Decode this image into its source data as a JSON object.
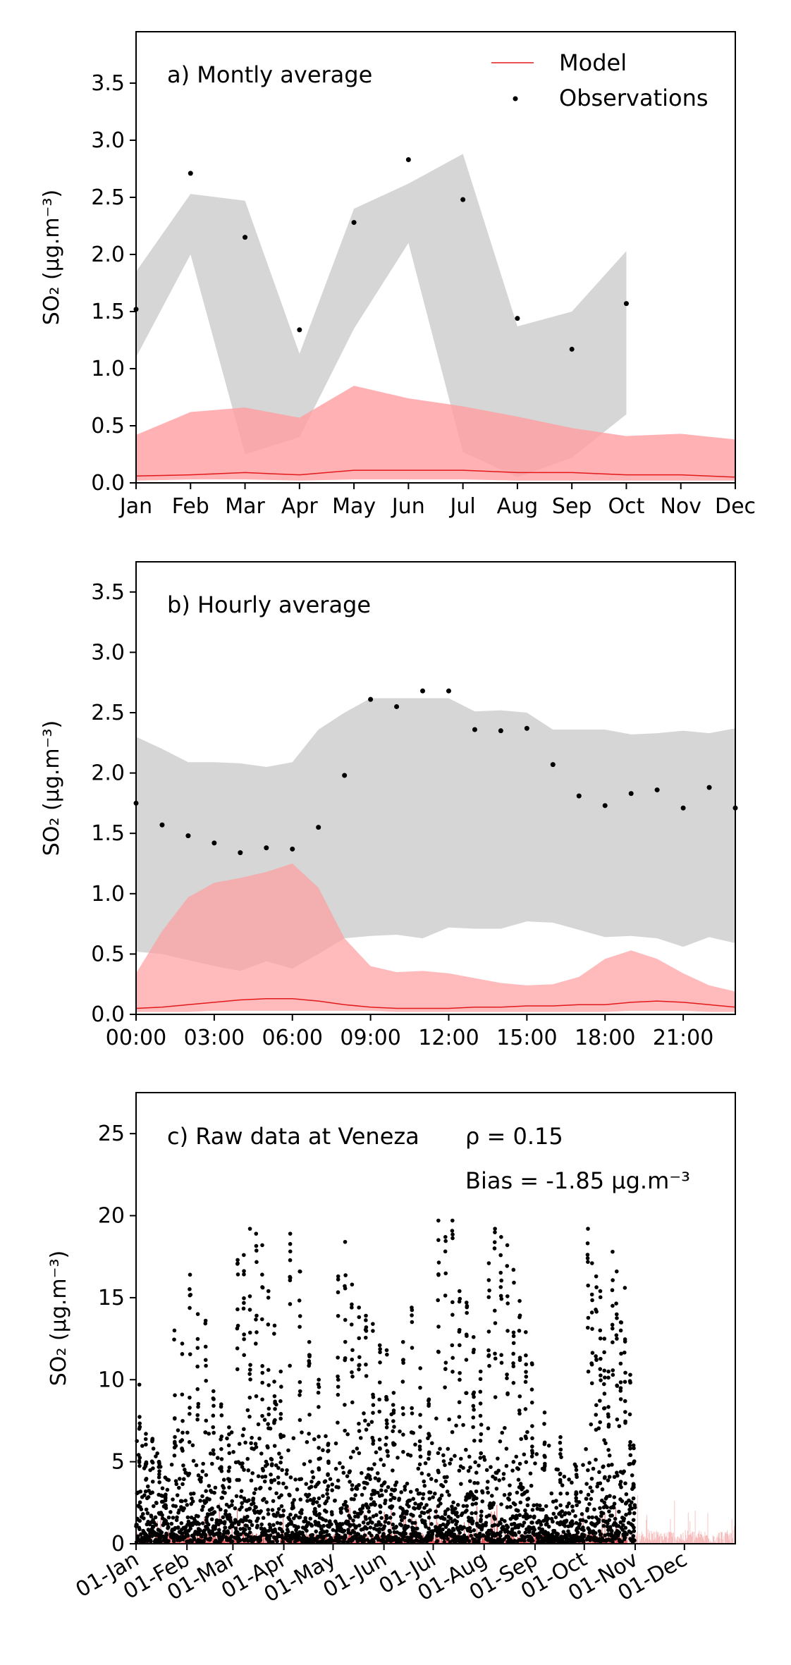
{
  "figure": {
    "colors": {
      "model_line": "#e31a1c",
      "model_band": "#ff9da0",
      "obs_band": "#c8c8c8",
      "obs_point": "#000000"
    },
    "legend": {
      "model_label": "Model",
      "obs_label": "Observations"
    }
  },
  "chart_data": [
    {
      "id": "monthly",
      "type": "line",
      "title": "a) Montly average",
      "ylabel": "SO₂ (μg.m⁻³)",
      "ylim": [
        0,
        3.95
      ],
      "yticks": [
        0.0,
        0.5,
        1.0,
        1.5,
        2.0,
        2.5,
        3.0,
        3.5
      ],
      "categories": [
        "Jan",
        "Feb",
        "Mar",
        "Apr",
        "May",
        "Jun",
        "Jul",
        "Aug",
        "Sep",
        "Oct",
        "Nov",
        "Dec"
      ],
      "x": [
        0,
        1,
        2,
        3,
        4,
        5,
        6,
        7,
        8,
        9,
        10,
        11
      ],
      "xlim": [
        0,
        11
      ],
      "legend_position": "top-right",
      "obs_band": {
        "x": [
          0,
          1,
          2,
          3,
          4,
          5,
          6,
          7,
          8,
          9
        ],
        "upper": [
          1.85,
          2.53,
          2.47,
          1.13,
          2.4,
          2.62,
          2.88,
          1.37,
          1.5,
          2.03
        ],
        "lower": [
          1.1,
          2.0,
          0.25,
          0.4,
          1.35,
          2.1,
          0.27,
          0.05,
          0.22,
          0.6
        ]
      },
      "model_band": {
        "x": [
          0,
          1,
          2,
          3,
          4,
          5,
          6,
          7,
          8,
          9,
          10,
          11
        ],
        "upper": [
          0.42,
          0.62,
          0.66,
          0.57,
          0.85,
          0.74,
          0.67,
          0.58,
          0.48,
          0.41,
          0.43,
          0.38
        ],
        "lower": [
          0.02,
          0.03,
          0.03,
          0.02,
          0.03,
          0.03,
          0.03,
          0.02,
          0.02,
          0.02,
          0.02,
          0.02
        ]
      },
      "model_line": {
        "x": [
          0,
          1,
          2,
          3,
          4,
          5,
          6,
          7,
          8,
          9,
          10,
          11
        ],
        "y": [
          0.06,
          0.07,
          0.09,
          0.07,
          0.11,
          0.11,
          0.11,
          0.09,
          0.09,
          0.07,
          0.07,
          0.05
        ]
      },
      "observations": {
        "x": [
          0,
          1,
          2,
          3,
          4,
          5,
          6,
          7,
          8,
          9
        ],
        "y": [
          1.52,
          2.71,
          2.15,
          1.34,
          2.28,
          2.83,
          2.48,
          1.44,
          1.17,
          1.57
        ]
      }
    },
    {
      "id": "hourly",
      "type": "line",
      "title": "b) Hourly average",
      "ylabel": "SO₂ (μg.m⁻³)",
      "ylim": [
        0,
        3.75
      ],
      "yticks": [
        0.0,
        0.5,
        1.0,
        1.5,
        2.0,
        2.5,
        3.0,
        3.5
      ],
      "xticklabels": [
        "00:00",
        "03:00",
        "06:00",
        "09:00",
        "12:00",
        "15:00",
        "18:00",
        "21:00"
      ],
      "xticks": [
        0,
        3,
        6,
        9,
        12,
        15,
        18,
        21
      ],
      "xlim": [
        0,
        23
      ],
      "obs_band": {
        "x": [
          0,
          1,
          2,
          3,
          4,
          5,
          6,
          7,
          8,
          9,
          10,
          11,
          12,
          13,
          14,
          15,
          16,
          17,
          18,
          19,
          20,
          21,
          22,
          23
        ],
        "upper": [
          2.3,
          2.2,
          2.09,
          2.09,
          2.08,
          2.05,
          2.09,
          2.36,
          2.5,
          2.62,
          2.62,
          2.62,
          2.62,
          2.51,
          2.52,
          2.5,
          2.36,
          2.36,
          2.36,
          2.32,
          2.33,
          2.35,
          2.33,
          2.37
        ],
        "lower": [
          0.52,
          0.5,
          0.45,
          0.4,
          0.36,
          0.44,
          0.38,
          0.5,
          0.63,
          0.65,
          0.66,
          0.63,
          0.72,
          0.71,
          0.71,
          0.77,
          0.76,
          0.7,
          0.64,
          0.65,
          0.63,
          0.56,
          0.64,
          0.59
        ]
      },
      "model_band": {
        "x": [
          0,
          1,
          2,
          3,
          4,
          5,
          6,
          7,
          8,
          9,
          10,
          11,
          12,
          13,
          14,
          15,
          16,
          17,
          18,
          19,
          20,
          21,
          22,
          23
        ],
        "upper": [
          0.34,
          0.69,
          0.97,
          1.09,
          1.13,
          1.18,
          1.25,
          1.05,
          0.63,
          0.4,
          0.35,
          0.36,
          0.34,
          0.3,
          0.26,
          0.24,
          0.25,
          0.31,
          0.46,
          0.53,
          0.46,
          0.34,
          0.24,
          0.19
        ],
        "lower": [
          0.02,
          0.02,
          0.02,
          0.03,
          0.03,
          0.03,
          0.03,
          0.03,
          0.03,
          0.03,
          0.02,
          0.02,
          0.02,
          0.02,
          0.02,
          0.02,
          0.02,
          0.02,
          0.02,
          0.03,
          0.03,
          0.03,
          0.02,
          0.02
        ]
      },
      "model_line": {
        "x": [
          0,
          1,
          2,
          3,
          4,
          5,
          6,
          7,
          8,
          9,
          10,
          11,
          12,
          13,
          14,
          15,
          16,
          17,
          18,
          19,
          20,
          21,
          22,
          23
        ],
        "y": [
          0.05,
          0.06,
          0.08,
          0.1,
          0.12,
          0.13,
          0.13,
          0.11,
          0.08,
          0.06,
          0.05,
          0.05,
          0.05,
          0.06,
          0.06,
          0.07,
          0.07,
          0.08,
          0.08,
          0.1,
          0.11,
          0.1,
          0.08,
          0.06
        ]
      },
      "observations": {
        "x": [
          0,
          1,
          2,
          3,
          4,
          5,
          6,
          7,
          8,
          9,
          10,
          11,
          12,
          13,
          14,
          15,
          16,
          17,
          18,
          19,
          20,
          21,
          22,
          23
        ],
        "y": [
          1.75,
          1.57,
          1.48,
          1.42,
          1.34,
          1.38,
          1.37,
          1.55,
          1.98,
          2.61,
          2.55,
          2.68,
          2.68,
          2.36,
          2.35,
          2.37,
          2.07,
          1.81,
          1.73,
          1.83,
          1.86,
          1.71,
          1.88,
          1.71
        ]
      }
    },
    {
      "id": "raw",
      "type": "scatter",
      "title": "c) Raw data at Veneza",
      "ylabel": "SO₂ (μg.m⁻³)",
      "ylim": [
        0,
        27.5
      ],
      "yticks": [
        0,
        5,
        10,
        15,
        20,
        25
      ],
      "xticklabels": [
        "01-Jan",
        "01-Feb",
        "01-Mar",
        "01-Apr",
        "01-May",
        "01-Jun",
        "01-Jul",
        "01-Aug",
        "01-Sep",
        "01-Oct",
        "01-Nov",
        "01-Dec"
      ],
      "xticks_day_of_year": [
        1,
        32,
        60,
        91,
        121,
        152,
        182,
        213,
        244,
        274,
        305,
        335
      ],
      "xlim_day_of_year": [
        1,
        366
      ],
      "rho_label": "ρ = 0.15",
      "bias_label": "Bias = -1.85 μg.m⁻³",
      "observation_clusters_day_of_year": [
        {
          "range": [
            1,
            21
          ],
          "typical_max": 2.5,
          "peaks": [
            9.7,
            6.7,
            6.4,
            5.0,
            3.0
          ]
        },
        {
          "range": [
            22,
            60
          ],
          "typical_max": 3.0,
          "peaks": [
            13.0,
            12.2,
            16.4,
            14.0,
            13.6,
            9.3,
            8.5,
            7.1
          ]
        },
        {
          "range": [
            61,
            91
          ],
          "typical_max": 4.5,
          "peaks": [
            17.3,
            17.6,
            19.2,
            18.9,
            18.2,
            15.4,
            13.3,
            10.5
          ]
        },
        {
          "range": [
            92,
            121
          ],
          "typical_max": 3.0,
          "peaks": [
            18.9,
            16.6,
            12.3,
            10.0,
            6.1
          ]
        },
        {
          "range": [
            122,
            160
          ],
          "typical_max": 4.0,
          "peaks": [
            16.3,
            18.4,
            15.8,
            14.4,
            13.9,
            13.4,
            12.1,
            11.8,
            9.2
          ]
        },
        {
          "range": [
            161,
            182
          ],
          "typical_max": 3.0,
          "peaks": [
            12.3,
            14.4,
            10.7,
            8.8
          ]
        },
        {
          "range": [
            183,
            213
          ],
          "typical_max": 4.0,
          "peaks": [
            19.7,
            18.7,
            19.7,
            15.4,
            14.7,
            12.6,
            10.5
          ]
        },
        {
          "range": [
            214,
            244
          ],
          "typical_max": 3.5,
          "peaks": [
            17.1,
            19.2,
            18.7,
            18.2,
            16.7,
            14.8,
            12.9,
            11.0
          ]
        },
        {
          "range": [
            245,
            274
          ],
          "typical_max": 2.0,
          "peaks": [
            8.0,
            6.5,
            4.5
          ]
        },
        {
          "range": [
            275,
            300
          ],
          "typical_max": 3.5,
          "peaks": [
            19.2,
            17.1,
            16.3,
            15.4,
            12.5,
            10.5,
            17.8,
            16.6,
            13.5,
            15.6
          ]
        },
        {
          "range": [
            301,
            305
          ],
          "typical_max": 2.5,
          "peaks": [
            10.3,
            6.0
          ]
        }
      ],
      "model_series_note": "model hourly values 0-2.5 across year"
    }
  ]
}
